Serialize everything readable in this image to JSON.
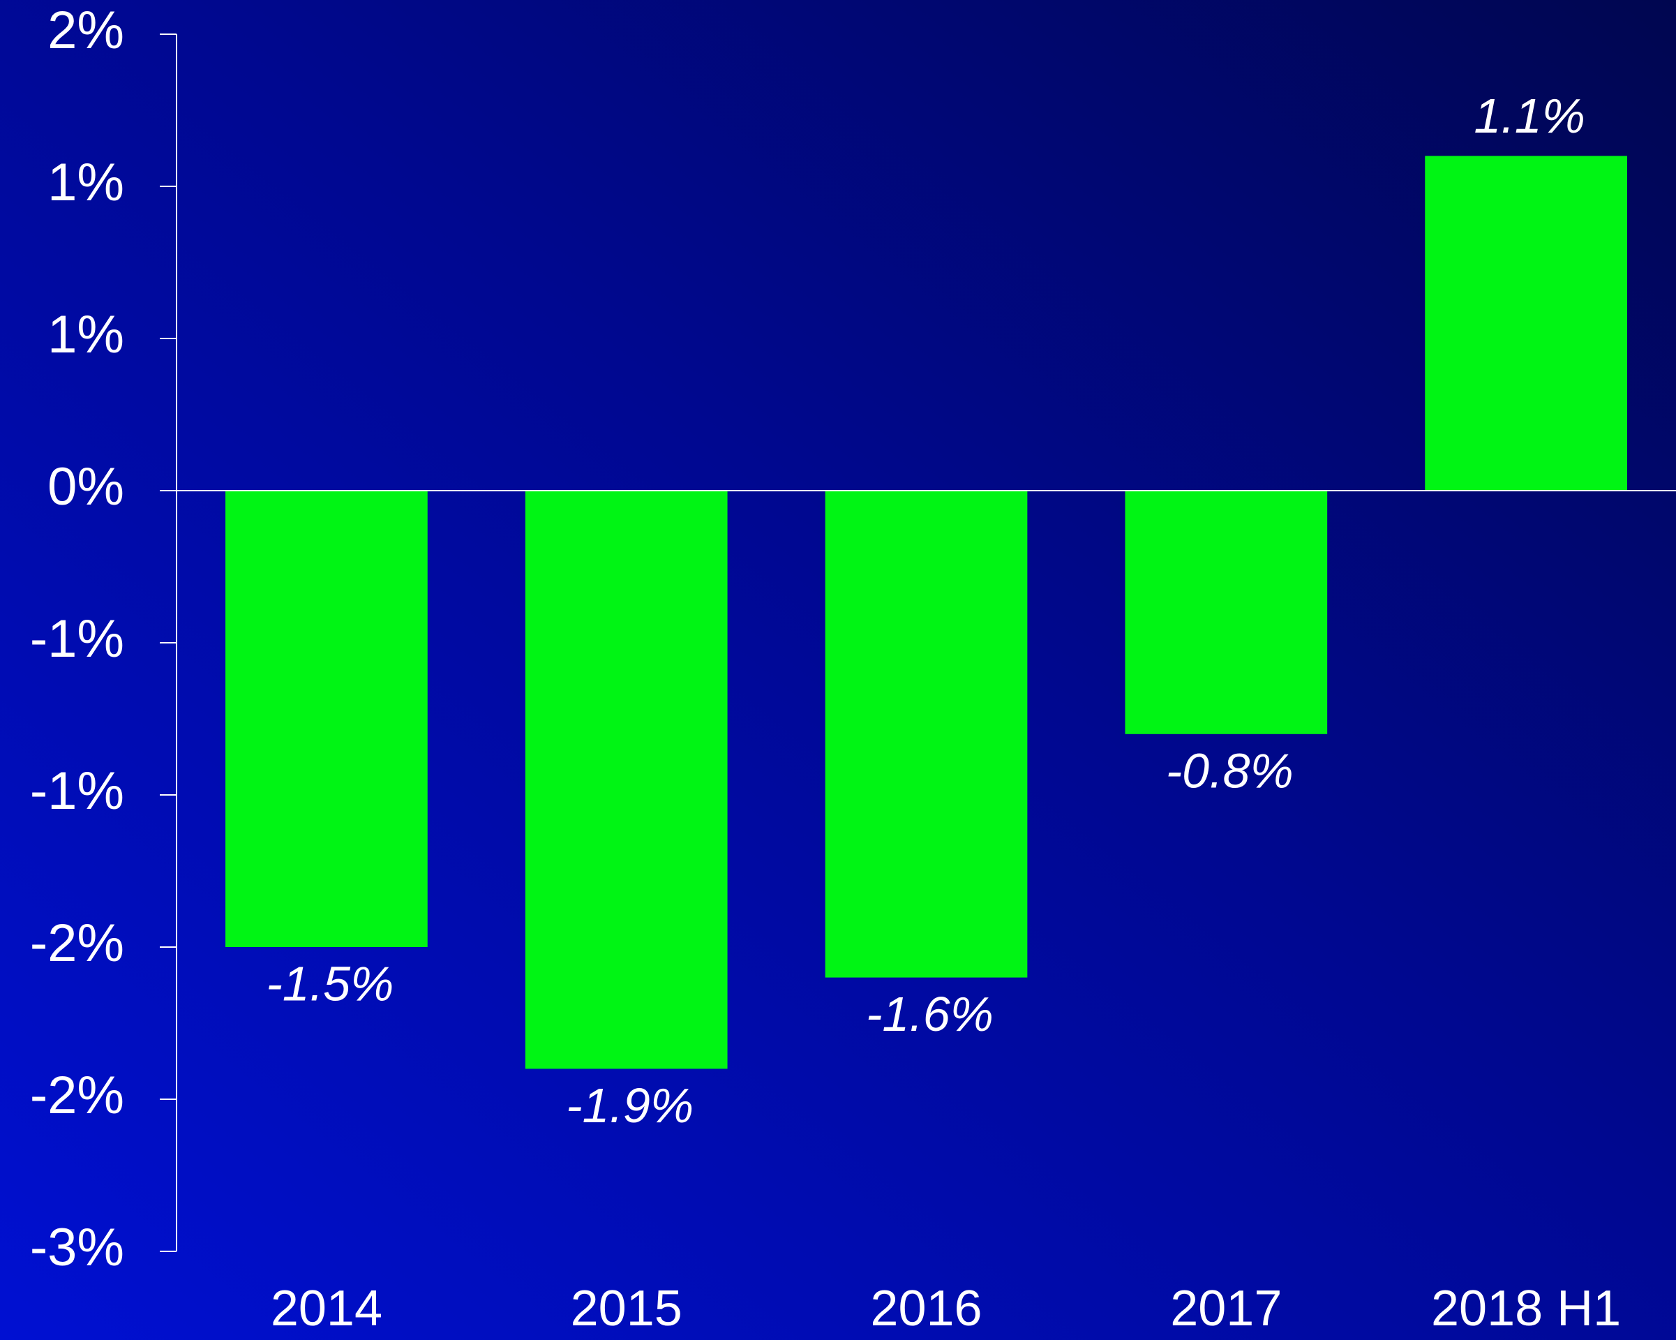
{
  "chart_data": {
    "type": "bar",
    "categories": [
      "2014",
      "2015",
      "2016",
      "2017",
      "2018 H1"
    ],
    "values": [
      -1.5,
      -1.9,
      -1.6,
      -0.8,
      1.1
    ],
    "value_labels": [
      "-1.5%",
      "-1.9%",
      "-1.6%",
      "-0.8%",
      "1.1%"
    ],
    "color": "#00f514",
    "ylim": [
      -2.5,
      1.5
    ],
    "yticks": [
      {
        "value": 1.5,
        "label": "2%"
      },
      {
        "value": 1.0,
        "label": "1%"
      },
      {
        "value": 0.5,
        "label": "1%"
      },
      {
        "value": 0,
        "label": "0%"
      },
      {
        "value": -0.5,
        "label": "-1%"
      },
      {
        "value": -1.0,
        "label": "-1%"
      },
      {
        "value": -1.5,
        "label": "-2%"
      },
      {
        "value": -2.0,
        "label": "-2%"
      },
      {
        "value": -2.5,
        "label": "-3%"
      }
    ],
    "grid": false
  }
}
